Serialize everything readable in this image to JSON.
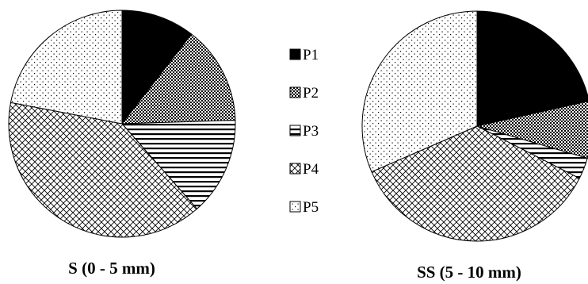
{
  "chart_data": [
    {
      "type": "pie",
      "title": "S (0 - 5 mm)",
      "categories": [
        "P1",
        "P2",
        "P3",
        "P4",
        "P5"
      ],
      "values": [
        10.5,
        14.0,
        14.0,
        39.5,
        22.0
      ],
      "start_angle_deg": 90,
      "direction": "clockwise"
    },
    {
      "type": "pie",
      "title": "SS (5 - 10 mm)",
      "categories": [
        "P1",
        "P2",
        "P3",
        "P4",
        "P5"
      ],
      "values": [
        21.5,
        8.0,
        3.0,
        36.0,
        31.5
      ],
      "start_angle_deg": 90,
      "direction": "clockwise"
    }
  ],
  "legend": {
    "placement": "center",
    "items": [
      {
        "label": "P1",
        "pattern": "solid-black"
      },
      {
        "label": "P2",
        "pattern": "dense-dots"
      },
      {
        "label": "P3",
        "pattern": "horizontal-lines"
      },
      {
        "label": "P4",
        "pattern": "crosshatch"
      },
      {
        "label": "P5",
        "pattern": "sparse-dots"
      }
    ]
  }
}
